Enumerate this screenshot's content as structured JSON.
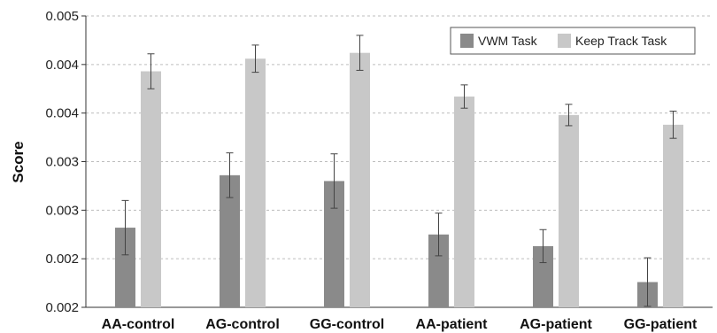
{
  "chart_data": {
    "type": "bar",
    "title": "",
    "xlabel": "",
    "ylabel": "Score",
    "categories": [
      "AA-control",
      "AG-control",
      "GG-control",
      "AA-patient",
      "AG-patient",
      "GG-patient"
    ],
    "yticks": [
      "0.002",
      "0.002",
      "0.003",
      "0.003",
      "0.004",
      "0.004",
      "0.005"
    ],
    "ylim": [
      0.002,
      0.005
    ],
    "grid": true,
    "legend_position": "top-right",
    "series": [
      {
        "name": "VWM Task",
        "color": "#8a8a8a",
        "values": [
          0.00282,
          0.00336,
          0.0033,
          0.00275,
          0.00263,
          0.00226
        ],
        "errors": [
          0.00028,
          0.00023,
          0.00028,
          0.00022,
          0.00017,
          0.00025
        ]
      },
      {
        "name": "Keep Track Task",
        "color": "#c8c8c8",
        "values": [
          0.00443,
          0.00456,
          0.00462,
          0.00417,
          0.00398,
          0.00388
        ],
        "errors": [
          0.00018,
          0.00014,
          0.00018,
          0.00012,
          0.00011,
          0.00014
        ]
      }
    ]
  }
}
